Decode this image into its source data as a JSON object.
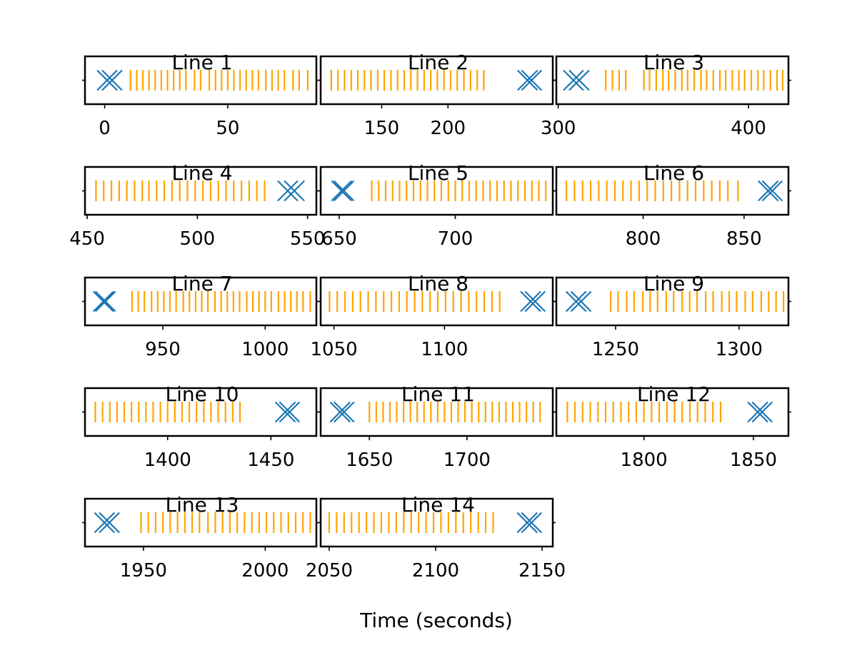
{
  "figure": {
    "xlabel": "Time (seconds)"
  },
  "chart_data": [
    {
      "type": "scatter",
      "title": "Line 1",
      "xlim": [
        -8,
        86
      ],
      "xticks": [
        0,
        50
      ],
      "xticklabels": [
        "0",
        "50"
      ],
      "x_marker_x": [
        1,
        3
      ],
      "tick_marks_x": [
        10.5,
        13.0,
        15.5,
        18.0,
        20.5,
        23.0,
        25.5,
        28.0,
        30.5,
        33.0,
        36.5,
        39.0,
        42.5,
        45.0,
        47.5,
        50.0,
        52.5,
        55.0,
        57.5,
        60.0,
        62.5,
        65.5,
        68.0,
        70.5,
        73.0,
        76.5,
        79.0,
        82.5
      ]
    },
    {
      "type": "scatter",
      "title": "Line 2",
      "xlim": [
        104,
        279
      ],
      "xticks": [
        150,
        200
      ],
      "xticklabels": [
        "150",
        "200"
      ],
      "x_marker_x": [
        260,
        263
      ],
      "tick_marks_x": [
        112,
        117,
        122,
        127,
        132,
        137,
        142,
        147,
        152,
        157,
        162,
        167,
        172,
        177,
        182,
        187,
        192,
        197,
        202,
        207,
        212,
        217,
        222,
        227
      ]
    },
    {
      "type": "scatter",
      "title": "Line 3",
      "xlim": [
        299,
        421
      ],
      "xticks": [
        300,
        400
      ],
      "xticklabels": [
        "300",
        "400"
      ],
      "x_marker_x": [
        308,
        311
      ],
      "tick_marks_x": [
        325,
        328.5,
        332,
        335.5,
        345,
        348,
        351.5,
        355,
        358,
        361.5,
        365,
        368,
        371.5,
        375,
        378,
        381.5,
        385,
        388,
        391.5,
        395,
        398,
        401.5,
        405,
        408,
        411.5,
        415,
        418
      ]
    },
    {
      "type": "scatter",
      "title": "Line 4",
      "xlim": [
        449,
        554
      ],
      "xticks": [
        450,
        500,
        550
      ],
      "xticklabels": [
        "450",
        "500",
        "550"
      ],
      "x_marker_x": [
        541,
        544
      ],
      "tick_marks_x": [
        454,
        457.5,
        461,
        464.5,
        468,
        471.5,
        475,
        478,
        481.5,
        485,
        488.5,
        492,
        495.5,
        499,
        502.5,
        506,
        509.5,
        513,
        516.5,
        520,
        523.5,
        527,
        530.5
      ]
    },
    {
      "type": "scatter",
      "title": "Line 5",
      "xlim": [
        642,
        742
      ],
      "xticks": [
        650,
        700
      ],
      "xticklabels": [
        "650",
        "700"
      ],
      "x_marker_x": [
        651,
        652
      ],
      "tick_marks_x": [
        664,
        667,
        670,
        673,
        676,
        679,
        682,
        685,
        688,
        691,
        694,
        697,
        700,
        703,
        706,
        709,
        712,
        715,
        718,
        721,
        724,
        727,
        730,
        733,
        736,
        739
      ]
    },
    {
      "type": "scatter",
      "title": "Line 6",
      "xlim": [
        757,
        872
      ],
      "xticks": [
        800,
        850
      ],
      "xticklabels": [
        "800",
        "850"
      ],
      "x_marker_x": [
        862,
        864
      ],
      "tick_marks_x": [
        762,
        766,
        770,
        774,
        778,
        782,
        786,
        790,
        794,
        798,
        802,
        806,
        810,
        814,
        818,
        822,
        826,
        830,
        834,
        838,
        842,
        847
      ]
    },
    {
      "type": "scatter",
      "title": "Line 7",
      "xlim": [
        912,
        1025
      ],
      "xticks": [
        950,
        1000
      ],
      "xticklabels": [
        "950",
        "1000"
      ],
      "x_marker_x": [
        921,
        922
      ],
      "tick_marks_x": [
        935,
        938,
        941,
        944.5,
        947.5,
        950.5,
        953.5,
        956.5,
        960,
        963,
        966,
        969,
        972,
        975.5,
        978.5,
        981.5,
        984.5,
        987.5,
        991,
        994,
        997,
        1000,
        1003,
        1006.5,
        1009.5,
        1012.5,
        1015.5,
        1018.5,
        1022
      ]
    },
    {
      "type": "scatter",
      "title": "Line 8",
      "xlim": [
        1044,
        1149
      ],
      "xticks": [
        1050,
        1100
      ],
      "xticklabels": [
        "1050",
        "1100"
      ],
      "x_marker_x": [
        1139,
        1141
      ],
      "tick_marks_x": [
        1048,
        1051.5,
        1055,
        1058.5,
        1062,
        1065.5,
        1069,
        1072.5,
        1076,
        1079.5,
        1083,
        1086.5,
        1090,
        1093.5,
        1097,
        1100.5,
        1104,
        1107.5,
        1111,
        1114.5,
        1118,
        1121.5,
        1125
      ]
    },
    {
      "type": "scatter",
      "title": "Line 9",
      "xlim": [
        1226,
        1320
      ],
      "xticks": [
        1250,
        1300
      ],
      "xticklabels": [
        "1250",
        "1300"
      ],
      "x_marker_x": [
        1234,
        1236
      ],
      "tick_marks_x": [
        1248,
        1251,
        1254.5,
        1257.5,
        1261,
        1264,
        1267,
        1270.5,
        1273.5,
        1277,
        1280,
        1283,
        1286.5,
        1289.5,
        1293,
        1296,
        1299,
        1302.5,
        1305.5,
        1309,
        1312,
        1315,
        1318
      ]
    },
    {
      "type": "scatter",
      "title": "Line 10",
      "xlim": [
        1360,
        1472
      ],
      "xticks": [
        1400,
        1450
      ],
      "xticklabels": [
        "1400",
        "1450"
      ],
      "x_marker_x": [
        1457,
        1459
      ],
      "tick_marks_x": [
        1365,
        1368.5,
        1372,
        1375.5,
        1379,
        1382.5,
        1386,
        1389.5,
        1393,
        1396.5,
        1400,
        1403.5,
        1407,
        1410.5,
        1414,
        1417.5,
        1421,
        1424.5,
        1428,
        1431.5,
        1435
      ]
    },
    {
      "type": "scatter",
      "title": "Line 11",
      "xlim": [
        1625,
        1744
      ],
      "xticks": [
        1650,
        1700
      ],
      "xticklabels": [
        "1650",
        "1700"
      ],
      "x_marker_x": [
        1635,
        1637
      ],
      "tick_marks_x": [
        1650,
        1653.5,
        1657,
        1660.5,
        1664,
        1667.5,
        1671,
        1674.5,
        1678,
        1681.5,
        1685,
        1688.5,
        1692,
        1695.5,
        1699,
        1702.5,
        1706,
        1709.5,
        1713,
        1716.5,
        1720,
        1723.5,
        1727,
        1730.5,
        1734,
        1737.5
      ]
    },
    {
      "type": "scatter",
      "title": "Line 12",
      "xlim": [
        1760,
        1866
      ],
      "xticks": [
        1800,
        1850
      ],
      "xticklabels": [
        "1800",
        "1850"
      ],
      "x_marker_x": [
        1852,
        1854
      ],
      "tick_marks_x": [
        1765,
        1768.5,
        1772,
        1775.5,
        1779,
        1782.5,
        1786,
        1789.5,
        1793,
        1796.5,
        1800,
        1803.5,
        1807,
        1810.5,
        1814,
        1817.5,
        1821,
        1824.5,
        1828,
        1831.5,
        1835
      ]
    },
    {
      "type": "scatter",
      "title": "Line 13",
      "xlim": [
        1926,
        2021
      ],
      "xticks": [
        1950,
        2000
      ],
      "xticklabels": [
        "1950",
        "2000"
      ],
      "x_marker_x": [
        1934,
        1936
      ],
      "tick_marks_x": [
        1949,
        1952,
        1955,
        1958,
        1961,
        1964,
        1967,
        1970,
        1973,
        1976.5,
        1979.5,
        1982.5,
        1985.5,
        1988.5,
        1991.5,
        1994.5,
        1997.5,
        2000.5,
        2003.5,
        2006.5,
        2009.5,
        2012.5,
        2015.5,
        2018.5
      ]
    },
    {
      "type": "scatter",
      "title": "Line 14",
      "xlim": [
        2046,
        2155
      ],
      "xticks": [
        2050,
        2100,
        2150
      ],
      "xticklabels": [
        "2050",
        "2100",
        "2150"
      ],
      "x_marker_x": [
        2143,
        2145
      ],
      "tick_marks_x": [
        2050,
        2053.5,
        2057,
        2060.5,
        2064,
        2067.5,
        2071,
        2074.5,
        2078,
        2081.5,
        2085,
        2088.5,
        2092,
        2095.5,
        2099,
        2102.5,
        2106,
        2109.5,
        2113,
        2116.5,
        2120,
        2123.5,
        2127
      ]
    }
  ],
  "colors": {
    "x_marker": "#1f77b4",
    "tick_mark": "#ffa500",
    "axes": "#000000"
  }
}
